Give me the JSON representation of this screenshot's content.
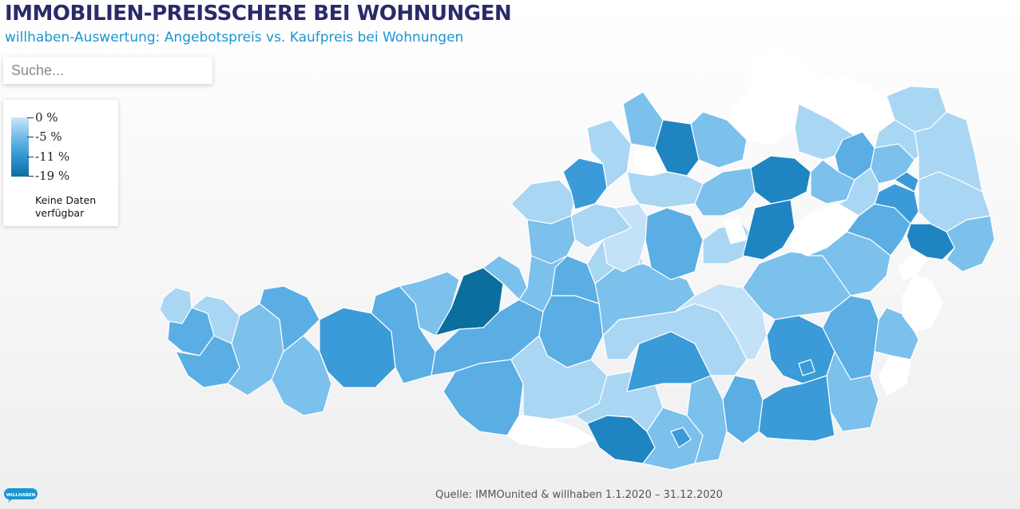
{
  "header": {
    "title": "IMMOBILIEN-PREISSCHERE BEI WOHNUNGEN",
    "subtitle": "willhaben-Auswertung: Angebotspreis vs. Kaufpreis bei Wohnungen"
  },
  "search": {
    "placeholder": "Suche..."
  },
  "legend": {
    "scale": [
      "0 %",
      "-5 %",
      "-11 %",
      "-19 %"
    ],
    "no_data_label": "Keine Daten verfügbar",
    "colors": [
      "#c8e6f8",
      "#6fb8e8",
      "#2e92cf",
      "#0b6e9f"
    ],
    "no_data_color": "#ffffff"
  },
  "map": {
    "palette": {
      "p0": "#c3e2f7",
      "p1": "#a9d6f3",
      "p2": "#7cc0ec",
      "p3": "#5aaee4",
      "p4": "#3a9bd8",
      "p5": "#1f85c2",
      "p6": "#0b6e9f",
      "none": "#ffffff"
    }
  },
  "footer": {
    "source": "Quelle: IMMOunited & willhaben 1.1.2020 – 31.12.2020",
    "logo_text": "WILLHABEN"
  }
}
